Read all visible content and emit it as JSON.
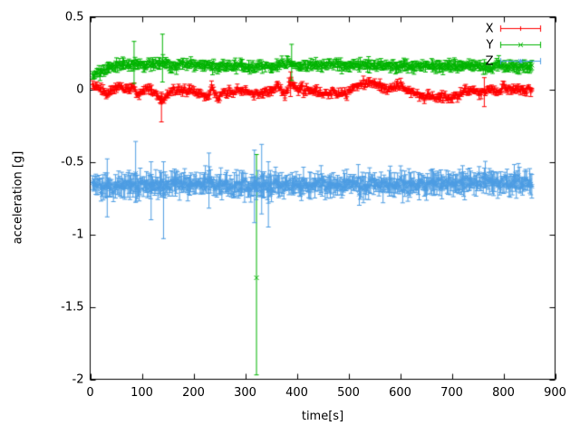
{
  "figure": {
    "background": "#ffffff",
    "border_color": "#000000"
  },
  "chart_data": {
    "type": "scatter",
    "style": "points-with-errorbars",
    "title": "",
    "xlabel": "time[s]",
    "ylabel": "acceleration [g]",
    "xlim": [
      0,
      900
    ],
    "ylim": [
      -2,
      0.5
    ],
    "xticks": [
      0,
      100,
      200,
      300,
      400,
      500,
      600,
      700,
      800,
      900
    ],
    "xtick_labels": [
      "0",
      "100",
      "200",
      "300",
      "400",
      "500",
      "600",
      "700",
      "800",
      "900"
    ],
    "yticks": [
      0.5,
      0,
      -0.5,
      -1,
      -1.5,
      -2
    ],
    "ytick_labels": [
      "0.5",
      "0",
      "-0.5",
      "-1",
      "-1.5",
      "-2"
    ],
    "grid": false,
    "legend_position": "top-right-inside",
    "sampling": {
      "t_start": 5,
      "t_end": 855,
      "dt": 2,
      "seed": 97
    },
    "series": [
      {
        "name": "X",
        "color": "#ff0000",
        "marker": "plus",
        "noise": 0.012,
        "errorbar": 0.02,
        "baseline": [
          [
            5,
            0.03
          ],
          [
            18,
            0.01
          ],
          [
            32,
            -0.03
          ],
          [
            48,
            0.0
          ],
          [
            58,
            0.02
          ],
          [
            70,
            0.0
          ],
          [
            82,
            0.01
          ],
          [
            95,
            -0.04
          ],
          [
            108,
            0.0
          ],
          [
            122,
            -0.01
          ],
          [
            136,
            -0.07
          ],
          [
            148,
            -0.05
          ],
          [
            162,
            0.0
          ],
          [
            180,
            -0.01
          ],
          [
            198,
            -0.01
          ],
          [
            215,
            -0.04
          ],
          [
            228,
            -0.05
          ],
          [
            236,
            0.02
          ],
          [
            246,
            -0.07
          ],
          [
            256,
            -0.02
          ],
          [
            266,
            -0.01
          ],
          [
            276,
            -0.04
          ],
          [
            288,
            0.0
          ],
          [
            300,
            -0.01
          ],
          [
            312,
            -0.03
          ],
          [
            325,
            -0.02
          ],
          [
            338,
            -0.02
          ],
          [
            352,
            0.0
          ],
          [
            366,
            0.03
          ],
          [
            376,
            -0.05
          ],
          [
            388,
            0.05
          ],
          [
            398,
            0.01
          ],
          [
            412,
            0.0
          ],
          [
            428,
            0.0
          ],
          [
            444,
            -0.02
          ],
          [
            462,
            -0.03
          ],
          [
            480,
            -0.03
          ],
          [
            498,
            -0.03
          ],
          [
            512,
            0.02
          ],
          [
            528,
            0.04
          ],
          [
            545,
            0.05
          ],
          [
            558,
            0.03
          ],
          [
            572,
            0.0
          ],
          [
            588,
            0.02
          ],
          [
            602,
            0.02
          ],
          [
            616,
            -0.01
          ],
          [
            632,
            -0.04
          ],
          [
            650,
            -0.05
          ],
          [
            668,
            -0.06
          ],
          [
            686,
            -0.05
          ],
          [
            702,
            -0.05
          ],
          [
            718,
            -0.03
          ],
          [
            734,
            -0.01
          ],
          [
            750,
            -0.02
          ],
          [
            764,
            -0.03
          ],
          [
            776,
            0.02
          ],
          [
            788,
            -0.03
          ],
          [
            800,
            0.02
          ],
          [
            815,
            0.0
          ],
          [
            832,
            0.0
          ],
          [
            855,
            -0.01
          ]
        ],
        "outliers": [
          {
            "t": 138,
            "v": -0.09,
            "lo": -0.225,
            "hi": -0.02
          },
          {
            "t": 388,
            "v": 0.04,
            "lo": -0.05,
            "hi": 0.12
          },
          {
            "t": 763,
            "v": -0.01,
            "lo": -0.12,
            "hi": 0.08
          }
        ]
      },
      {
        "name": "Y",
        "color": "#00b400",
        "marker": "cross",
        "noise": 0.01,
        "errorbar": 0.028,
        "baseline": [
          [
            5,
            0.1
          ],
          [
            14,
            0.11
          ],
          [
            26,
            0.13
          ],
          [
            40,
            0.15
          ],
          [
            55,
            0.16
          ],
          [
            75,
            0.17
          ],
          [
            95,
            0.17
          ],
          [
            115,
            0.17
          ],
          [
            132,
            0.17
          ],
          [
            145,
            0.18
          ],
          [
            160,
            0.16
          ],
          [
            178,
            0.17
          ],
          [
            198,
            0.17
          ],
          [
            218,
            0.16
          ],
          [
            240,
            0.16
          ],
          [
            262,
            0.16
          ],
          [
            285,
            0.16
          ],
          [
            308,
            0.15
          ],
          [
            322,
            0.15
          ],
          [
            338,
            0.16
          ],
          [
            355,
            0.16
          ],
          [
            370,
            0.17
          ],
          [
            385,
            0.18
          ],
          [
            398,
            0.16
          ],
          [
            415,
            0.16
          ],
          [
            435,
            0.16
          ],
          [
            455,
            0.17
          ],
          [
            478,
            0.17
          ],
          [
            500,
            0.16
          ],
          [
            522,
            0.17
          ],
          [
            545,
            0.17
          ],
          [
            568,
            0.17
          ],
          [
            590,
            0.16
          ],
          [
            615,
            0.16
          ],
          [
            640,
            0.16
          ],
          [
            665,
            0.16
          ],
          [
            690,
            0.16
          ],
          [
            715,
            0.16
          ],
          [
            738,
            0.17
          ],
          [
            758,
            0.16
          ],
          [
            772,
            0.14
          ],
          [
            788,
            0.17
          ],
          [
            802,
            0.16
          ],
          [
            820,
            0.16
          ],
          [
            838,
            0.16
          ],
          [
            855,
            0.16
          ]
        ],
        "outliers": [
          {
            "t": 85,
            "v": 0.18,
            "lo": 0.04,
            "hi": 0.33
          },
          {
            "t": 140,
            "v": 0.18,
            "lo": 0.05,
            "hi": 0.38
          },
          {
            "t": 390,
            "v": 0.18,
            "lo": 0.06,
            "hi": 0.31
          },
          {
            "t": 322,
            "v": -1.3,
            "lo": -1.97,
            "hi": -0.45
          }
        ]
      },
      {
        "name": "Z",
        "color": "#4d9de3",
        "marker": "star",
        "noise": 0.022,
        "errorbar": 0.062,
        "baseline": [
          [
            5,
            -0.66
          ],
          [
            60,
            -0.665
          ],
          [
            120,
            -0.66
          ],
          [
            180,
            -0.66
          ],
          [
            240,
            -0.66
          ],
          [
            300,
            -0.665
          ],
          [
            360,
            -0.66
          ],
          [
            420,
            -0.66
          ],
          [
            480,
            -0.655
          ],
          [
            540,
            -0.66
          ],
          [
            600,
            -0.65
          ],
          [
            660,
            -0.65
          ],
          [
            720,
            -0.65
          ],
          [
            780,
            -0.645
          ],
          [
            820,
            -0.64
          ],
          [
            855,
            -0.64
          ]
        ],
        "outliers": [
          {
            "t": 33,
            "v": -0.68,
            "lo": -0.88,
            "hi": -0.48
          },
          {
            "t": 88,
            "v": -0.58,
            "lo": -0.78,
            "hi": -0.36
          },
          {
            "t": 118,
            "v": -0.7,
            "lo": -0.9,
            "hi": -0.5
          },
          {
            "t": 142,
            "v": -0.72,
            "lo": -1.03,
            "hi": -0.5
          },
          {
            "t": 230,
            "v": -0.63,
            "lo": -0.82,
            "hi": -0.44
          },
          {
            "t": 318,
            "v": -0.66,
            "lo": -0.92,
            "hi": -0.42
          },
          {
            "t": 332,
            "v": -0.6,
            "lo": -0.86,
            "hi": -0.38
          },
          {
            "t": 345,
            "v": -0.7,
            "lo": -0.95,
            "hi": -0.5
          }
        ]
      }
    ]
  }
}
